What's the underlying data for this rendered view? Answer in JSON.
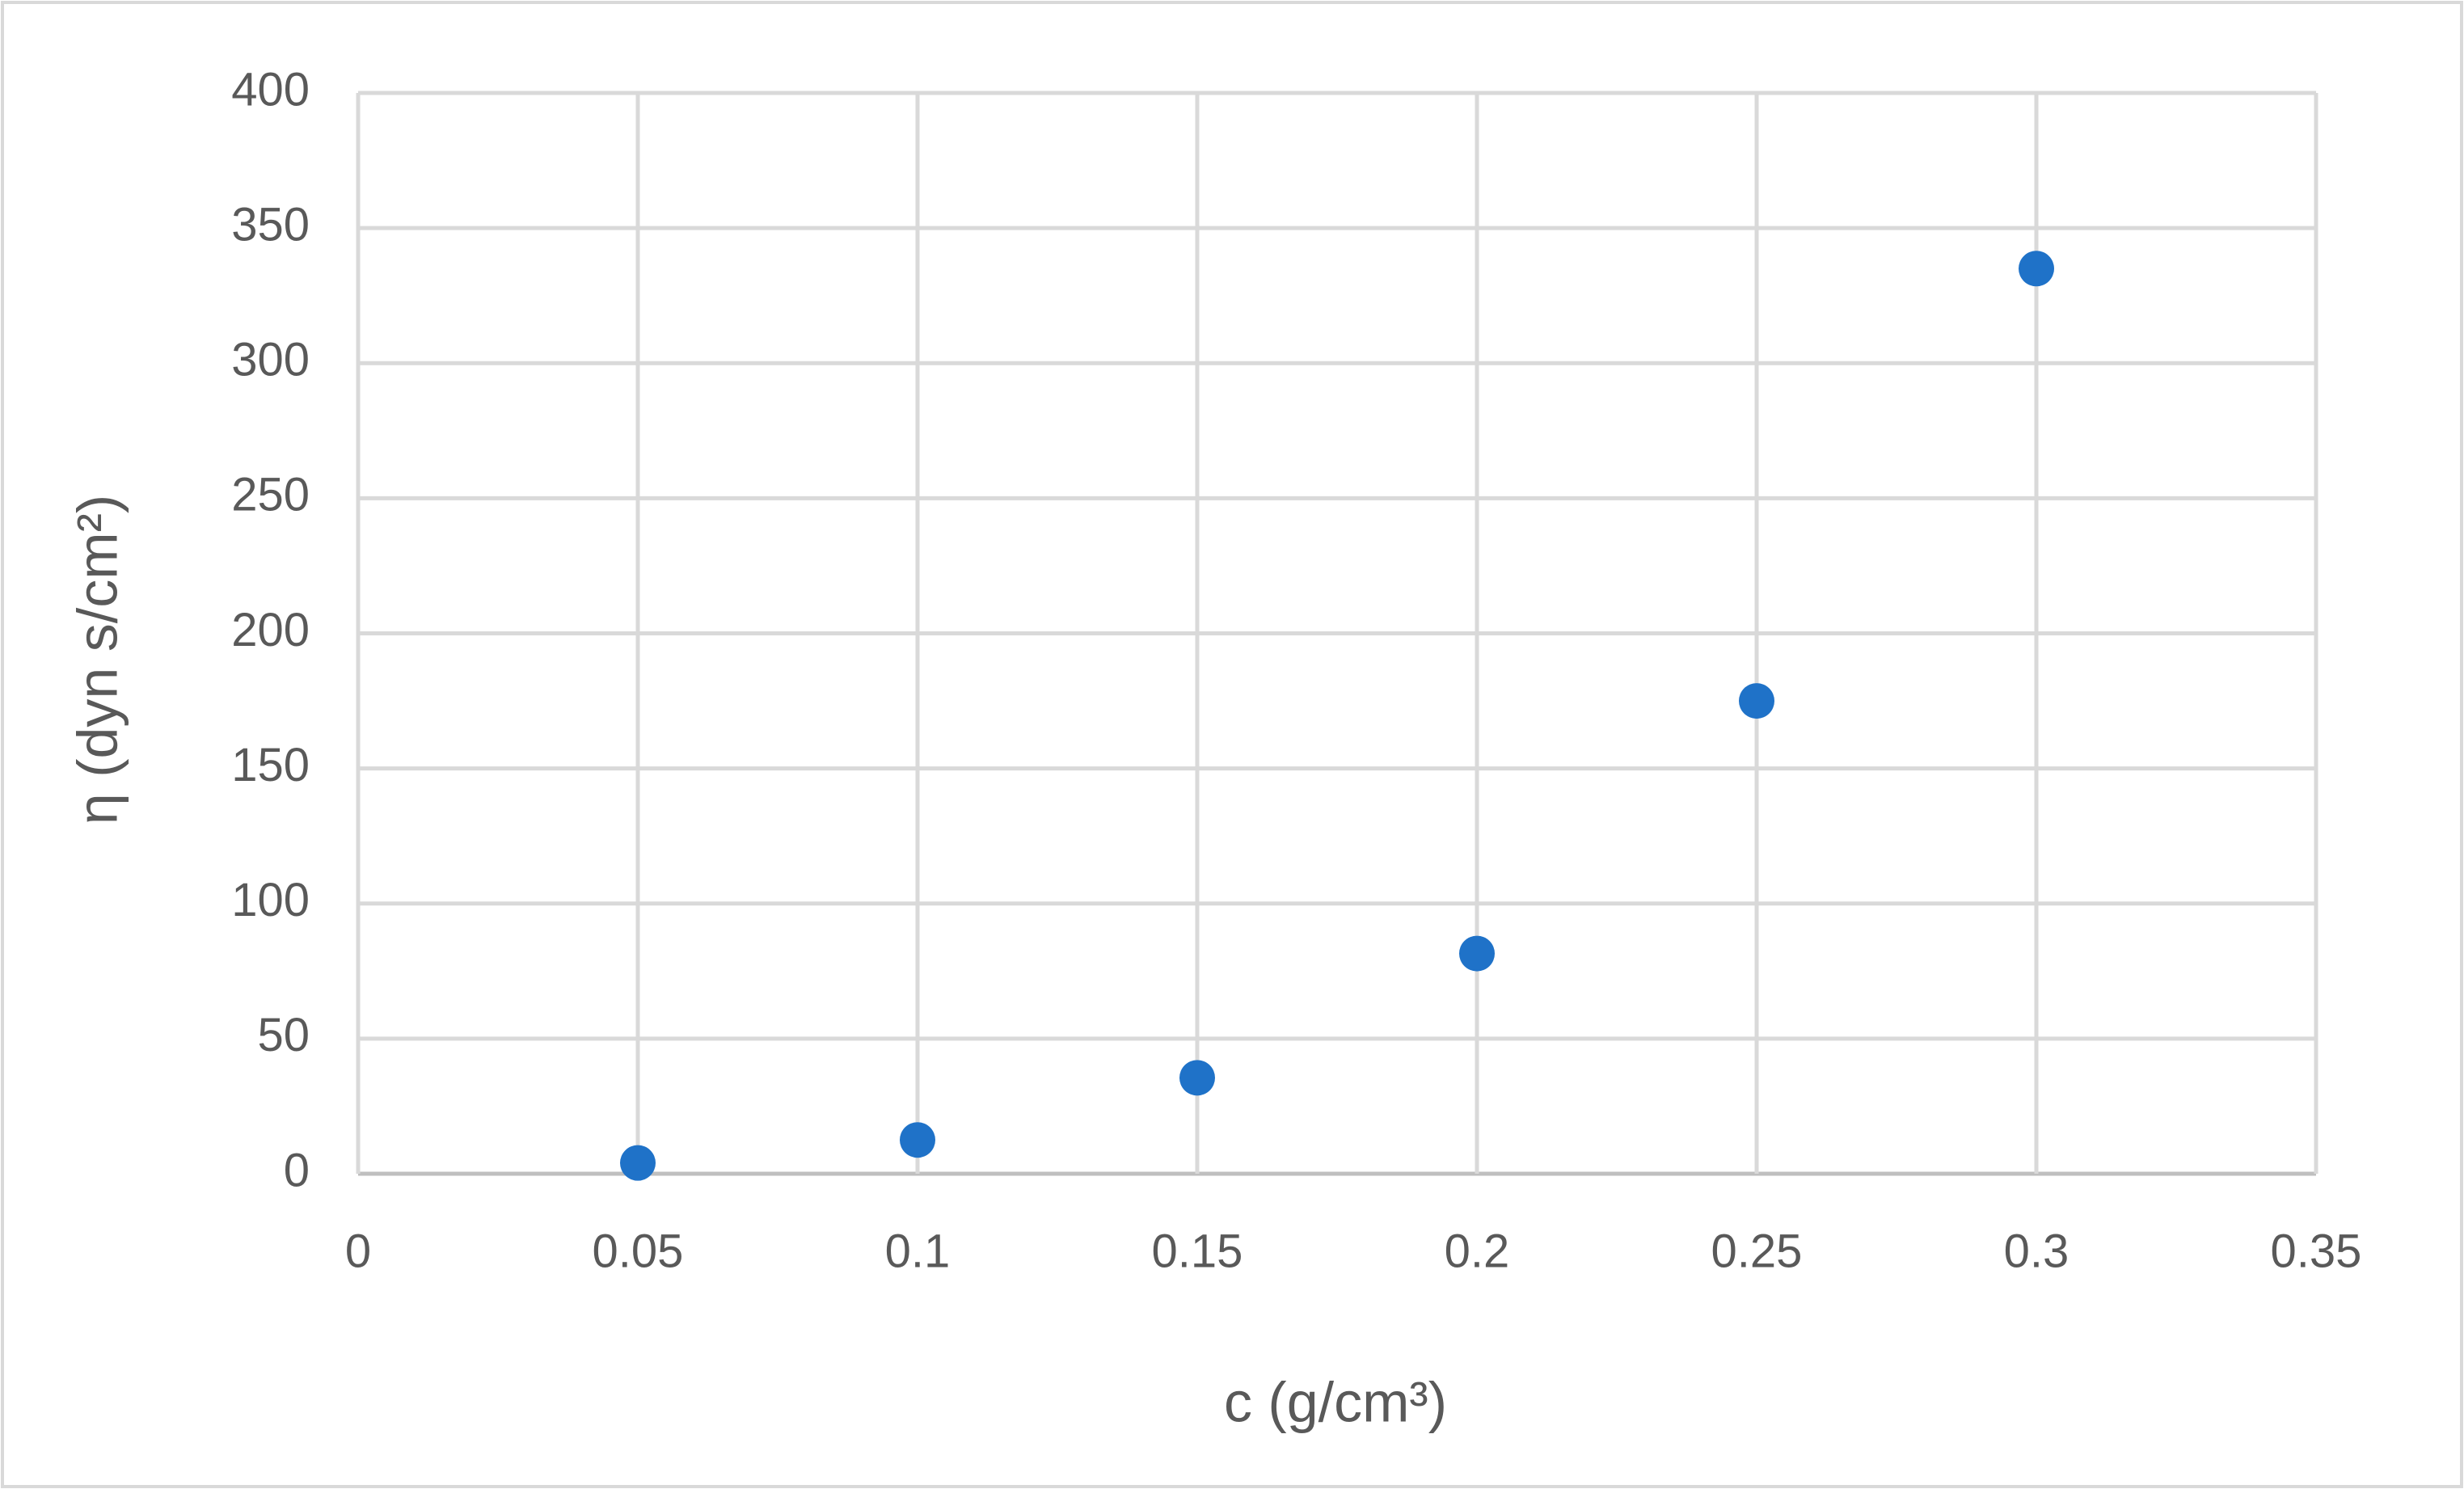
{
  "chart_data": {
    "type": "scatter",
    "x_label": "c (g/cm³)",
    "y_label": "η (dyn s/cm²)",
    "x": [
      0.05,
      0.1,
      0.15,
      0.2,
      0.25,
      0.3
    ],
    "values": [
      4,
      12.5,
      35.5,
      81.5,
      175,
      335
    ],
    "color": "#1f72c8",
    "xlim": [
      0,
      0.35
    ],
    "xticks": [
      0,
      0.05,
      0.1,
      0.15,
      0.2,
      0.25,
      0.3,
      0.35
    ],
    "ylim": [
      0,
      400
    ],
    "yticks": [
      0,
      50,
      100,
      150,
      200,
      250,
      300,
      350,
      400
    ],
    "grid": true
  }
}
